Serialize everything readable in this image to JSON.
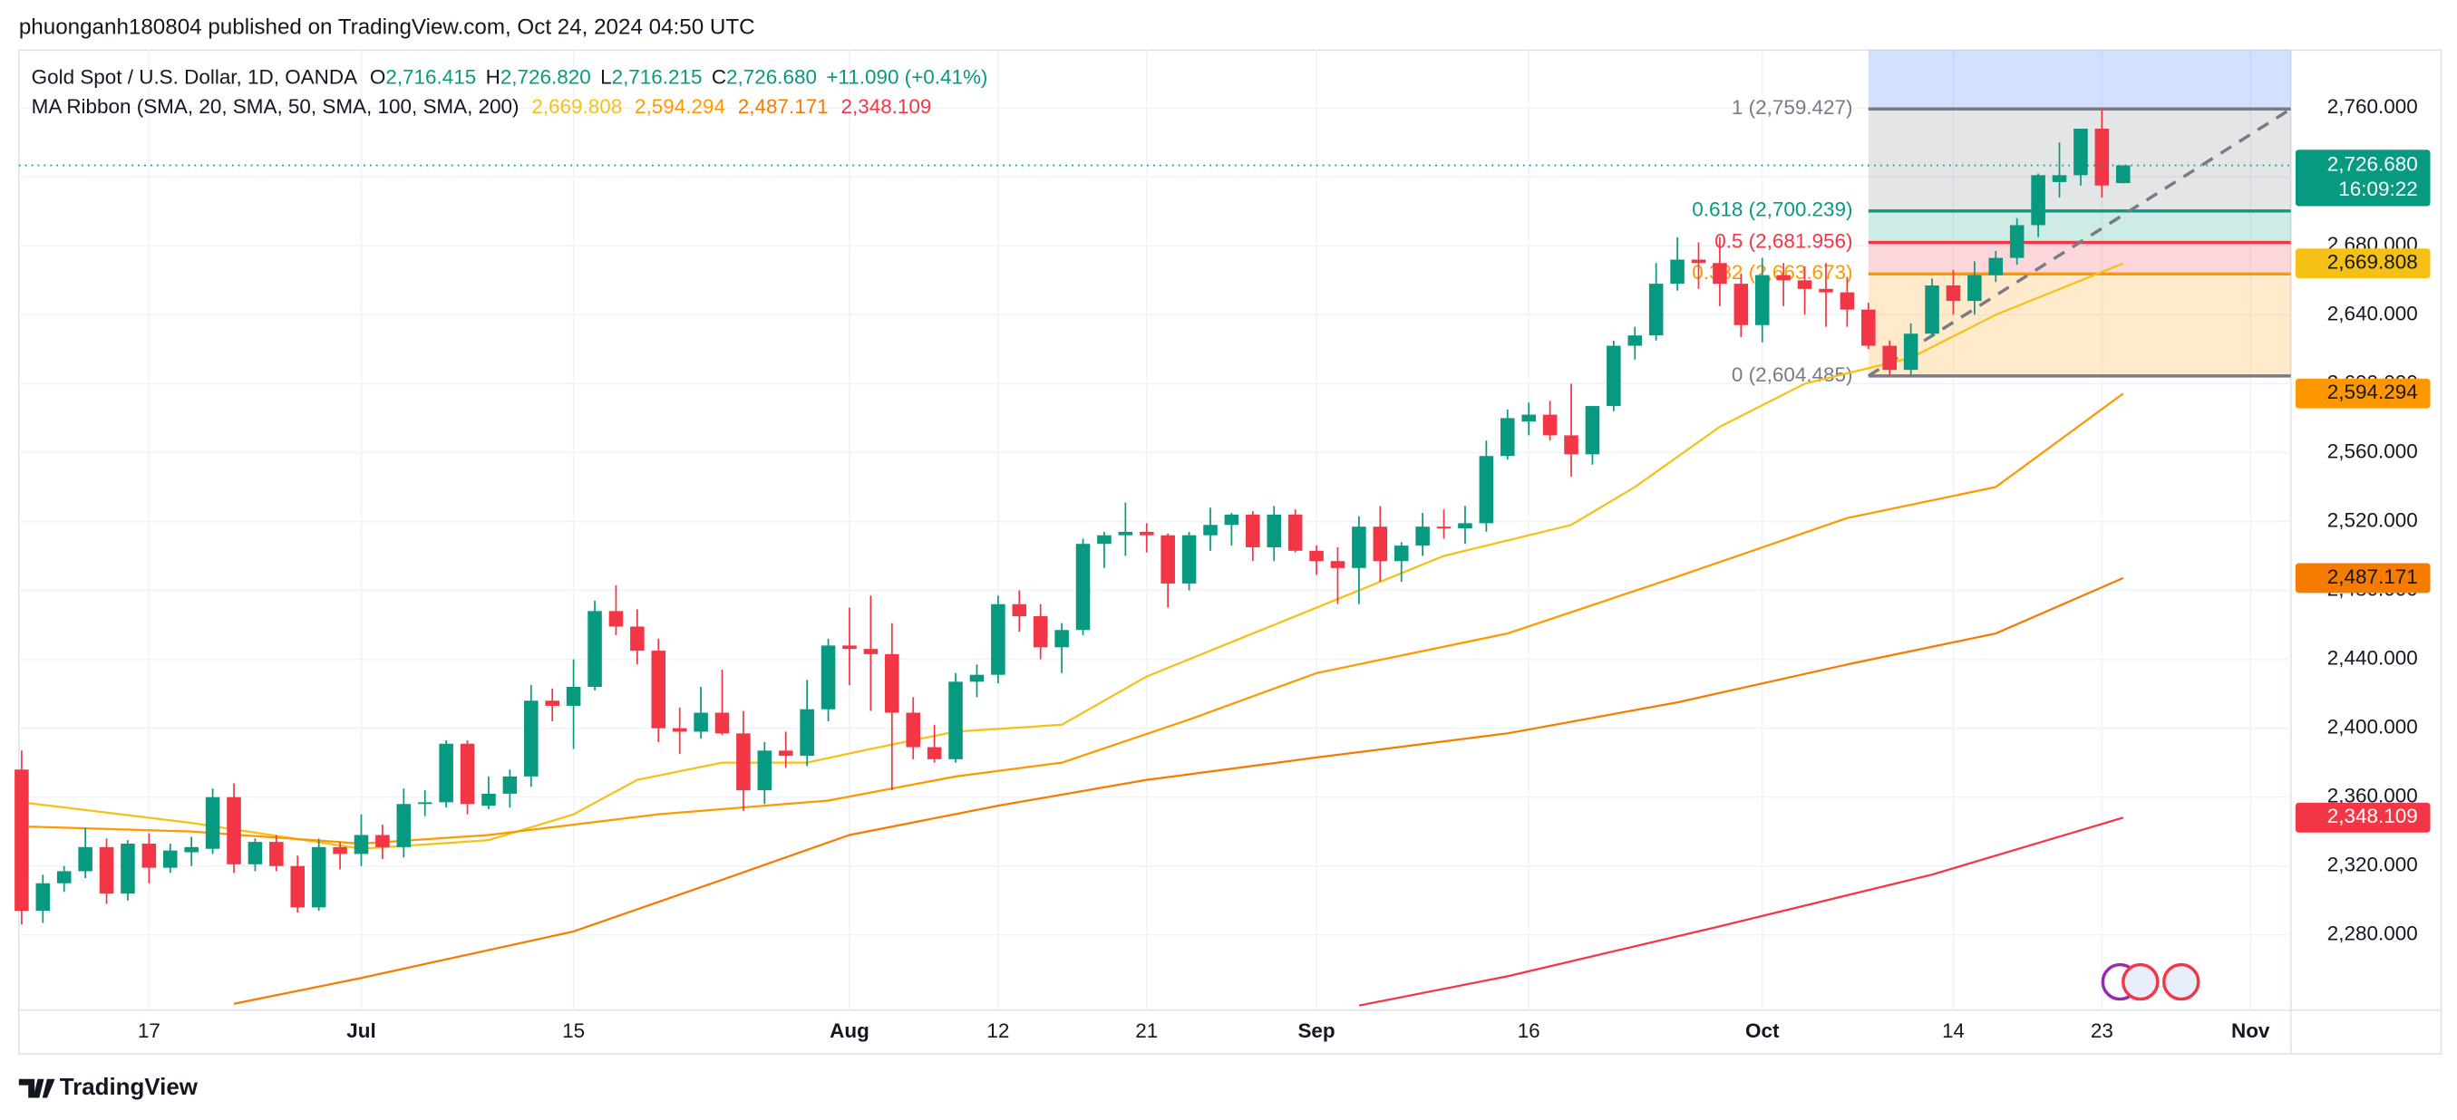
{
  "header": "phuonganh180804 published on TradingView.com, Oct 24, 2024 04:50 UTC",
  "footer": "TradingView",
  "chart_data": {
    "type": "candlestick",
    "title": "Gold Spot / U.S. Dollar, 1D, OANDA",
    "ohlc_prefixes": [
      "O",
      "H",
      "L",
      "C"
    ],
    "ohlc_labels": [
      "2,716.415",
      "2,726.820",
      "2,716.215",
      "2,726.680"
    ],
    "change_label": "+11.090 (+0.41%)",
    "indicator_title": "MA Ribbon (SMA, 20, SMA, 50, SMA, 100, SMA, 200)",
    "countdown": "16:09:22",
    "up_color": "#089981",
    "down_color": "#f23645",
    "categories": [
      null,
      null,
      null,
      null,
      null,
      null,
      "17",
      null,
      null,
      null,
      null,
      null,
      null,
      null,
      null,
      null,
      "Jul",
      null,
      null,
      null,
      null,
      null,
      null,
      null,
      null,
      null,
      "15",
      null,
      null,
      null,
      null,
      null,
      null,
      null,
      null,
      null,
      null,
      null,
      null,
      "Aug",
      null,
      null,
      null,
      null,
      null,
      null,
      "12",
      null,
      null,
      null,
      null,
      null,
      null,
      "21",
      null,
      null,
      null,
      null,
      null,
      null,
      null,
      "Sep",
      null,
      null,
      null,
      null,
      null,
      null,
      null,
      null,
      null,
      "16",
      null,
      null,
      null,
      null,
      null,
      null,
      null,
      null,
      null,
      null,
      "Oct",
      null,
      null,
      null,
      null,
      null,
      null,
      null,
      null,
      "14",
      null,
      null,
      null,
      null,
      null,
      null,
      "23",
      null,
      null,
      null,
      null,
      null,
      null,
      "Nov"
    ],
    "ohlc": [
      [
        2376,
        2387,
        2286,
        2294
      ],
      [
        2294,
        2315,
        2287,
        2310
      ],
      [
        2310,
        2320,
        2305,
        2317
      ],
      [
        2317,
        2342,
        2313,
        2331
      ],
      [
        2331,
        2336,
        2298,
        2304
      ],
      [
        2304,
        2335,
        2300,
        2333
      ],
      [
        2333,
        2339,
        2310,
        2319
      ],
      [
        2319,
        2333,
        2316,
        2329
      ],
      [
        2328,
        2337,
        2320,
        2331
      ],
      [
        2330,
        2365,
        2327,
        2360
      ],
      [
        2360,
        2368,
        2316,
        2321
      ],
      [
        2321,
        2336,
        2317,
        2334
      ],
      [
        2334,
        2338,
        2317,
        2320
      ],
      [
        2320,
        2326,
        2293,
        2296
      ],
      [
        2296,
        2336,
        2294,
        2331
      ],
      [
        2331,
        2334,
        2318,
        2327
      ],
      [
        2327,
        2350,
        2320,
        2338
      ],
      [
        2338,
        2344,
        2324,
        2331
      ],
      [
        2331,
        2365,
        2325,
        2356
      ],
      [
        2356,
        2364,
        2349,
        2357
      ],
      [
        2357,
        2393,
        2354,
        2391
      ],
      [
        2391,
        2393,
        2350,
        2356
      ],
      [
        2355,
        2372,
        2353,
        2362
      ],
      [
        2362,
        2376,
        2354,
        2372
      ],
      [
        2372,
        2425,
        2366,
        2416
      ],
      [
        2416,
        2423,
        2404,
        2413
      ],
      [
        2413,
        2440,
        2388,
        2424
      ],
      [
        2424,
        2474,
        2422,
        2468
      ],
      [
        2468,
        2483,
        2454,
        2459
      ],
      [
        2459,
        2469,
        2437,
        2445
      ],
      [
        2445,
        2452,
        2392,
        2400
      ],
      [
        2400,
        2412,
        2385,
        2398
      ],
      [
        2398,
        2424,
        2394,
        2409
      ],
      [
        2409,
        2434,
        2396,
        2397
      ],
      [
        2397,
        2410,
        2352,
        2364
      ],
      [
        2364,
        2392,
        2356,
        2387
      ],
      [
        2387,
        2398,
        2377,
        2384
      ],
      [
        2384,
        2428,
        2378,
        2411
      ],
      [
        2411,
        2452,
        2404,
        2448
      ],
      [
        2448,
        2470,
        2425,
        2446
      ],
      [
        2446,
        2477,
        2410,
        2443
      ],
      [
        2443,
        2461,
        2364,
        2409
      ],
      [
        2409,
        2418,
        2382,
        2389
      ],
      [
        2389,
        2402,
        2380,
        2382
      ],
      [
        2382,
        2432,
        2380,
        2427
      ],
      [
        2427,
        2437,
        2418,
        2431
      ],
      [
        2431,
        2477,
        2426,
        2472
      ],
      [
        2472,
        2480,
        2456,
        2465
      ],
      [
        2465,
        2472,
        2440,
        2447
      ],
      [
        2447,
        2461,
        2432,
        2457
      ],
      [
        2457,
        2510,
        2454,
        2507
      ],
      [
        2507,
        2514,
        2493,
        2512
      ],
      [
        2512,
        2531,
        2500,
        2514
      ],
      [
        2514,
        2519,
        2502,
        2512
      ],
      [
        2512,
        2513,
        2470,
        2484
      ],
      [
        2484,
        2514,
        2480,
        2512
      ],
      [
        2512,
        2528,
        2503,
        2518
      ],
      [
        2518,
        2525,
        2506,
        2524
      ],
      [
        2524,
        2526,
        2497,
        2505
      ],
      [
        2505,
        2529,
        2497,
        2524
      ],
      [
        2524,
        2527,
        2502,
        2503
      ],
      [
        2503,
        2506,
        2489,
        2497
      ],
      [
        2497,
        2505,
        2472,
        2493
      ],
      [
        2493,
        2523,
        2472,
        2517
      ],
      [
        2517,
        2529,
        2485,
        2497
      ],
      [
        2497,
        2508,
        2485,
        2506
      ],
      [
        2506,
        2525,
        2500,
        2517
      ],
      [
        2517,
        2527,
        2510,
        2516
      ],
      [
        2516,
        2529,
        2507,
        2519
      ],
      [
        2519,
        2567,
        2514,
        2558
      ],
      [
        2558,
        2585,
        2556,
        2580
      ],
      [
        2578,
        2589,
        2570,
        2582
      ],
      [
        2582,
        2590,
        2567,
        2570
      ],
      [
        2570,
        2600,
        2546,
        2559
      ],
      [
        2559,
        2587,
        2553,
        2587
      ],
      [
        2587,
        2625,
        2584,
        2622
      ],
      [
        2622,
        2633,
        2614,
        2628
      ],
      [
        2628,
        2670,
        2625,
        2658
      ],
      [
        2658,
        2685,
        2654,
        2672
      ],
      [
        2672,
        2682,
        2655,
        2670
      ],
      [
        2670,
        2685,
        2645,
        2658
      ],
      [
        2658,
        2664,
        2627,
        2634
      ],
      [
        2634,
        2673,
        2624,
        2663
      ],
      [
        2663,
        2670,
        2645,
        2660
      ],
      [
        2660,
        2668,
        2640,
        2655
      ],
      [
        2655,
        2670,
        2633,
        2653
      ],
      [
        2653,
        2662,
        2633,
        2643
      ],
      [
        2643,
        2647,
        2620,
        2622
      ],
      [
        2622,
        2625,
        2604.485,
        2608
      ],
      [
        2608,
        2635,
        2605,
        2629
      ],
      [
        2629,
        2661,
        2627,
        2657
      ],
      [
        2657,
        2666,
        2640,
        2648
      ],
      [
        2648,
        2671,
        2640,
        2663
      ],
      [
        2663,
        2677,
        2659,
        2673
      ],
      [
        2673,
        2696,
        2669,
        2692
      ],
      [
        2692,
        2722,
        2685,
        2721
      ],
      [
        2717,
        2740,
        2708,
        2721
      ],
      [
        2721,
        2748,
        2715,
        2748
      ],
      [
        2748,
        2759.427,
        2708,
        2715
      ],
      [
        2716.415,
        2726.82,
        2716.215,
        2726.68
      ],
      null,
      null,
      null,
      null,
      null,
      null
    ],
    "xlim": [
      -0.13,
      106.9
    ],
    "ylim": [
      2236.4,
      2793.6
    ],
    "yticks": [
      {
        "value": 2280,
        "label": "2,280.000"
      },
      {
        "value": 2320,
        "label": "2,320.000"
      },
      {
        "value": 2360,
        "label": "2,360.000"
      },
      {
        "value": 2400,
        "label": "2,400.000"
      },
      {
        "value": 2440,
        "label": "2,440.000"
      },
      {
        "value": 2480,
        "label": "2,480.000"
      },
      {
        "value": 2520,
        "label": "2,520.000"
      },
      {
        "value": 2560,
        "label": "2,560.000"
      },
      {
        "value": 2600,
        "label": "2,600.000"
      },
      {
        "value": 2640,
        "label": "2,640.000"
      },
      {
        "value": 2680,
        "label": "2,680.000"
      },
      {
        "value": 2720,
        "label": "2,720.000"
      },
      {
        "value": 2760,
        "label": "2,760.000"
      }
    ],
    "grid": true,
    "overlays": [
      {
        "color": "#f5c116",
        "text_color": "#131722",
        "x": [
          0,
          8,
          16,
          22,
          26,
          29,
          33,
          37,
          40,
          44,
          49,
          53,
          61,
          67,
          73,
          76,
          80,
          84,
          89,
          93,
          99
        ],
        "values": [
          2357,
          2345,
          2330,
          2335,
          2350,
          2370,
          2380,
          2380,
          2388,
          2398,
          2402,
          2430,
          2470,
          2500,
          2518,
          2540,
          2575,
          2600,
          2615,
          2640,
          2669.808
        ],
        "value_label": "2,669.808"
      },
      {
        "color": "#ff9800",
        "text_color": "#131722",
        "x": [
          0,
          8,
          16,
          22,
          30,
          38,
          44,
          49,
          55,
          61,
          70,
          78,
          86,
          93,
          99
        ],
        "values": [
          2343,
          2340,
          2333,
          2338,
          2350,
          2358,
          2372,
          2380,
          2405,
          2432,
          2455,
          2488,
          2522,
          2540,
          2594.294
        ],
        "value_label": "2,594.294"
      },
      {
        "color": "#f57c00",
        "text_color": "#131722",
        "x": [
          10,
          16,
          26,
          33,
          39,
          46,
          53,
          61,
          70,
          78,
          86,
          93,
          99
        ],
        "values": [
          2240,
          2255,
          2282,
          2312,
          2338,
          2355,
          2370,
          2383,
          2397,
          2415,
          2437,
          2455,
          2487.171
        ],
        "value_label": "2,487.171"
      },
      {
        "color": "#f23645",
        "text_color": "#ffffff",
        "x": [
          63,
          70,
          80,
          90,
          99
        ],
        "values": [
          2239,
          2256,
          2285,
          2315,
          2348.109
        ],
        "value_label": "2,348.109"
      }
    ],
    "fib": {
      "x": [
        87,
        106.9
      ],
      "prices": [
        2759.427,
        2700.239,
        2681.956,
        2663.673,
        2604.485
      ],
      "value_labels": [
        "1 (2,759.427)",
        "0.618 (2,700.239)",
        "0.5 (2,681.956)",
        "0.382 (2,663.673)",
        "0 (2,604.485)"
      ],
      "colors": [
        "#787b86",
        "#089981",
        "#f23645",
        "#ff9800",
        "#787b86"
      ],
      "fills": [
        "rgba(120,123,134,0.2)",
        "rgba(8,153,129,0.2)",
        "rgba(242,54,69,0.2)",
        "rgba(255,152,0,0.2)"
      ],
      "top_fill": "rgba(41,98,255,0.2)"
    }
  }
}
